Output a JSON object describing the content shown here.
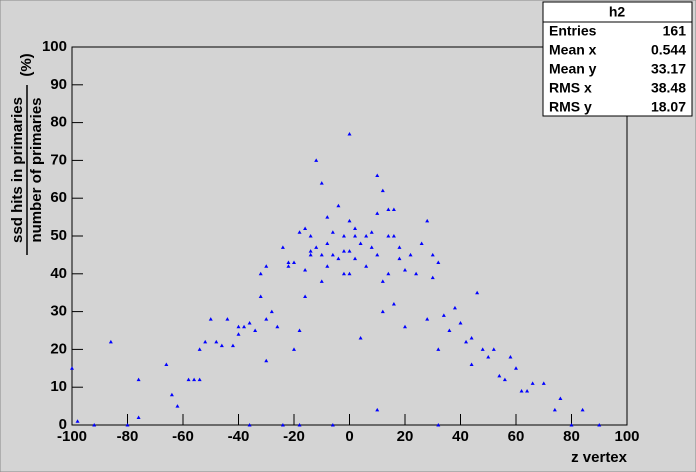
{
  "chart_data": {
    "type": "scatter",
    "ylabel_numerator": "ssd hits in primaries",
    "ylabel_denominator": "number of primaries",
    "ylabel_unit": "(%)",
    "xlabel": "z vertex",
    "color": "#0000ff",
    "xlim": [
      -100,
      100
    ],
    "xticks": [
      -100,
      -80,
      -60,
      -40,
      -20,
      0,
      20,
      40,
      60,
      80,
      100
    ],
    "ylim": [
      0,
      100
    ],
    "yticks": [
      0,
      10,
      20,
      30,
      40,
      50,
      60,
      70,
      80,
      90,
      100
    ],
    "x": [
      -100,
      -98,
      -92,
      -86,
      -80,
      -76,
      -76,
      -66,
      -64,
      -62,
      -58,
      -56,
      -54,
      -54,
      -52,
      -50,
      -48,
      -46,
      -44,
      -42,
      -40,
      -40,
      -38,
      -36,
      -34,
      -32,
      -32,
      -30,
      -30,
      -30,
      -28,
      -26,
      -24,
      -24,
      -22,
      -22,
      -20,
      -20,
      -18,
      -18,
      -16,
      -16,
      -16,
      -14,
      -14,
      -14,
      -12,
      -12,
      -10,
      -10,
      -10,
      -8,
      -8,
      -8,
      -6,
      -6,
      -4,
      -4,
      -2,
      -2,
      0,
      0,
      0,
      -2,
      0,
      2,
      2,
      2,
      4,
      4,
      6,
      6,
      8,
      8,
      10,
      10,
      10,
      10,
      12,
      12,
      12,
      14,
      14,
      14,
      16,
      16,
      16,
      18,
      18,
      20,
      20,
      22,
      24,
      26,
      28,
      28,
      30,
      30,
      32,
      32,
      34,
      36,
      38,
      40,
      42,
      44,
      44,
      46,
      48,
      50,
      52,
      54,
      56,
      58,
      60,
      62,
      64,
      66,
      70,
      74,
      76,
      80,
      84,
      90,
      -18,
      -6,
      32,
      -36
    ],
    "values": [
      15,
      1,
      0,
      22,
      0,
      12,
      2,
      16,
      8,
      5,
      12,
      12,
      12,
      20,
      22,
      28,
      22,
      21,
      28,
      21,
      24,
      26,
      26,
      27,
      25,
      40,
      34,
      42,
      28,
      17,
      30,
      26,
      47,
      0,
      42,
      43,
      43,
      20,
      51,
      25,
      52,
      41,
      34,
      50,
      46,
      45,
      70,
      47,
      64,
      38,
      45,
      55,
      48,
      42,
      51,
      45,
      58,
      44,
      50,
      40,
      77,
      54,
      46,
      46,
      40,
      50,
      44,
      52,
      48,
      23,
      42,
      50,
      51,
      47,
      66,
      56,
      4,
      45,
      62,
      38,
      30,
      57,
      50,
      40,
      57,
      50,
      32,
      47,
      44,
      41,
      26,
      45,
      40,
      48,
      54,
      28,
      45,
      39,
      43,
      20,
      29,
      25,
      31,
      27,
      22,
      23,
      16,
      35,
      20,
      18,
      20,
      13,
      12,
      18,
      15,
      9,
      9,
      11,
      11,
      4,
      7,
      0,
      4,
      0,
      0,
      0,
      0,
      0
    ],
    "stats": {
      "title": "h2",
      "rows": [
        {
          "label": "Entries",
          "value": 161
        },
        {
          "label": "Mean x",
          "value": 0.544
        },
        {
          "label": "Mean y",
          "value": 33.17
        },
        {
          "label": "RMS x",
          "value": 38.48
        },
        {
          "label": "RMS y",
          "value": 18.07
        }
      ]
    }
  }
}
